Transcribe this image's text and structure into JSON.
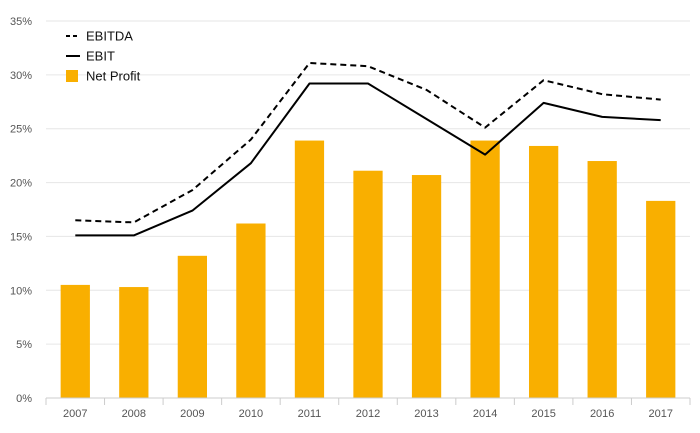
{
  "chart_data": {
    "type": "bar",
    "categories": [
      "2007",
      "2008",
      "2009",
      "2010",
      "2011",
      "2012",
      "2013",
      "2014",
      "2015",
      "2016",
      "2017"
    ],
    "series": [
      {
        "name": "EBITDA",
        "kind": "line",
        "style": "dashed",
        "color": "#000000",
        "values": [
          16.5,
          16.3,
          19.3,
          24.0,
          31.1,
          30.8,
          28.6,
          25.1,
          29.5,
          28.2,
          27.7
        ]
      },
      {
        "name": "EBIT",
        "kind": "line",
        "style": "solid",
        "color": "#000000",
        "values": [
          15.1,
          15.1,
          17.4,
          21.8,
          29.2,
          29.2,
          25.9,
          22.6,
          27.4,
          26.1,
          25.8
        ]
      },
      {
        "name": "Net Profit",
        "kind": "bar",
        "color": "#F9AF00",
        "values": [
          10.5,
          10.3,
          13.2,
          16.2,
          23.9,
          21.1,
          20.7,
          23.9,
          23.4,
          22.0,
          18.3
        ]
      }
    ],
    "y_ticks": [
      "0%",
      "5%",
      "10%",
      "15%",
      "20%",
      "25%",
      "30%",
      "35%"
    ],
    "ylim": [
      0,
      35
    ],
    "y_unit": "%",
    "grid": true,
    "legend_position": "top-left"
  }
}
